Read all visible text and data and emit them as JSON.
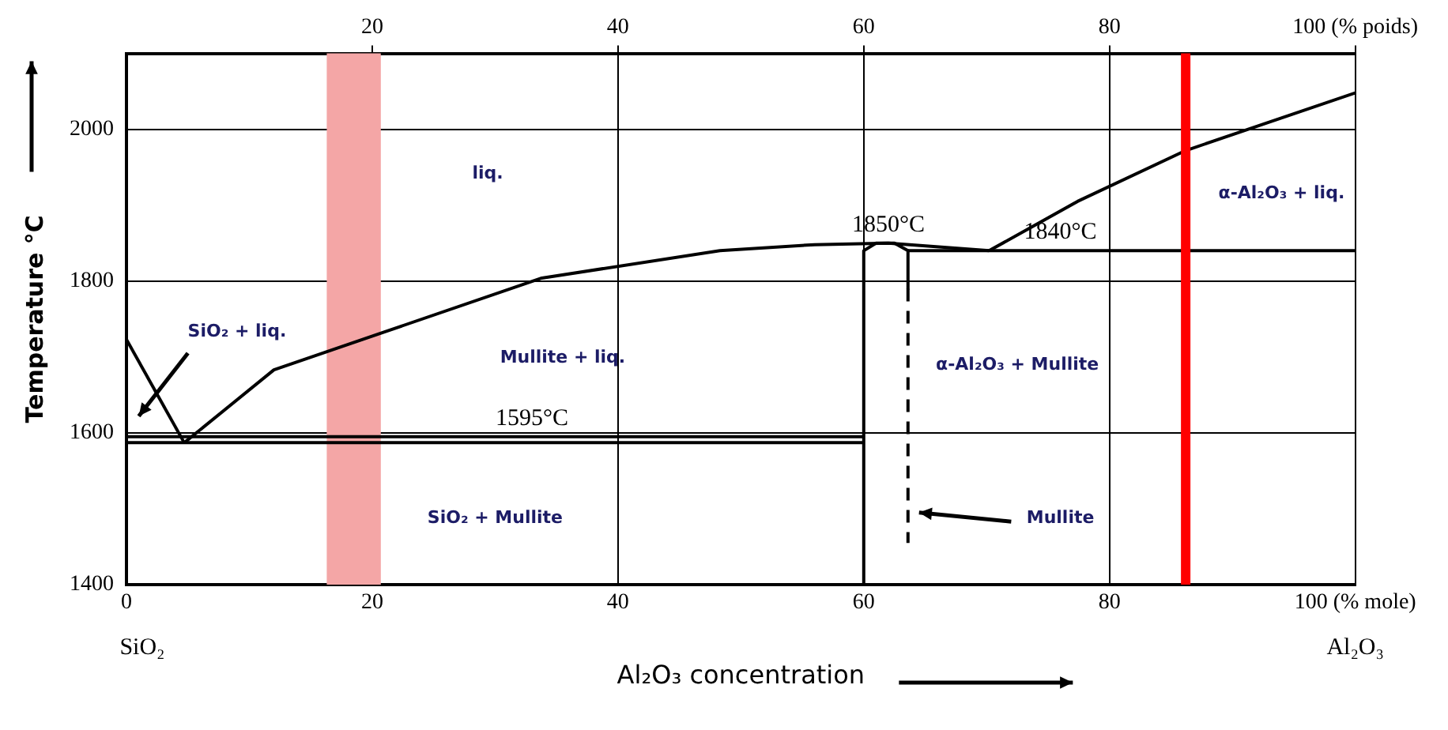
{
  "chart_data": {
    "type": "line",
    "xlabel": "Al₂O₃ concentration",
    "ylabel": "Temperature °C",
    "xlim": [
      0,
      100
    ],
    "ylim": [
      1400,
      2100
    ],
    "xticks": [
      0,
      20,
      40,
      60,
      80,
      {
        "value": 100,
        "label": "100 (% mole)"
      }
    ],
    "yticks": [
      1400,
      1600,
      1800,
      2000
    ],
    "x2lim": [
      0,
      100
    ],
    "x2ticks": [
      20,
      40,
      60,
      80,
      {
        "value": 100,
        "label": "100 (% poids)"
      }
    ],
    "grid": true,
    "legend": false,
    "marker": "none",
    "series": [
      {
        "color": "#000000",
        "x": [
          0,
          4.7
        ],
        "values": [
          1723,
          1587
        ]
      },
      {
        "color": "#000000",
        "x": [
          4.7,
          12,
          21,
          33.8,
          48.3,
          56,
          62,
          70.2
        ],
        "values": [
          1587,
          1683,
          1733,
          1804,
          1840,
          1848,
          1850,
          1840
        ]
      },
      {
        "color": "#000000",
        "x": [
          70.2,
          77.4,
          86.2,
          100
        ],
        "values": [
          1840,
          1905,
          1972,
          2048
        ]
      },
      {
        "color": "#000000",
        "x": [
          63.6,
          100
        ],
        "values": [
          1840,
          1840
        ]
      },
      {
        "color": "#000000",
        "x": [
          0,
          60
        ],
        "values": [
          1595,
          1595
        ]
      },
      {
        "color": "#000000",
        "x": [
          0,
          60
        ],
        "values": [
          1587,
          1587
        ]
      },
      {
        "color": "#000000",
        "x": [
          60,
          60,
          61,
          62.5,
          63.6,
          63.6
        ],
        "values": [
          1400,
          1840,
          1850,
          1850,
          1840,
          1790
        ]
      },
      {
        "color": "#000000",
        "x": [
          63.6,
          63.6
        ],
        "values": [
          1790,
          1455
        ],
        "line_style": "dashed"
      }
    ],
    "bands": [
      {
        "axis": "x",
        "from": 16.3,
        "to": 20.7,
        "color": "#f4a6a6"
      }
    ],
    "ref_lines": [
      {
        "axis": "x",
        "value": 86.2,
        "color": "#ff0000"
      }
    ],
    "annotations": [
      "liq.",
      "SiO₂ + liq.",
      "Mullite + liq.",
      "SiO₂ + Mullite",
      "α-Al₂O₃ + liq.",
      "α-Al₂O₃ + Mullite",
      "Mullite",
      "SiO₂",
      "Al₂O₃",
      {
        "text": "1595°C",
        "x": 33,
        "y": 1595
      },
      {
        "text": "1850°C",
        "x": 62,
        "y": 1850
      },
      {
        "text": "1840°C",
        "x": 76,
        "y": 1840
      }
    ]
  }
}
